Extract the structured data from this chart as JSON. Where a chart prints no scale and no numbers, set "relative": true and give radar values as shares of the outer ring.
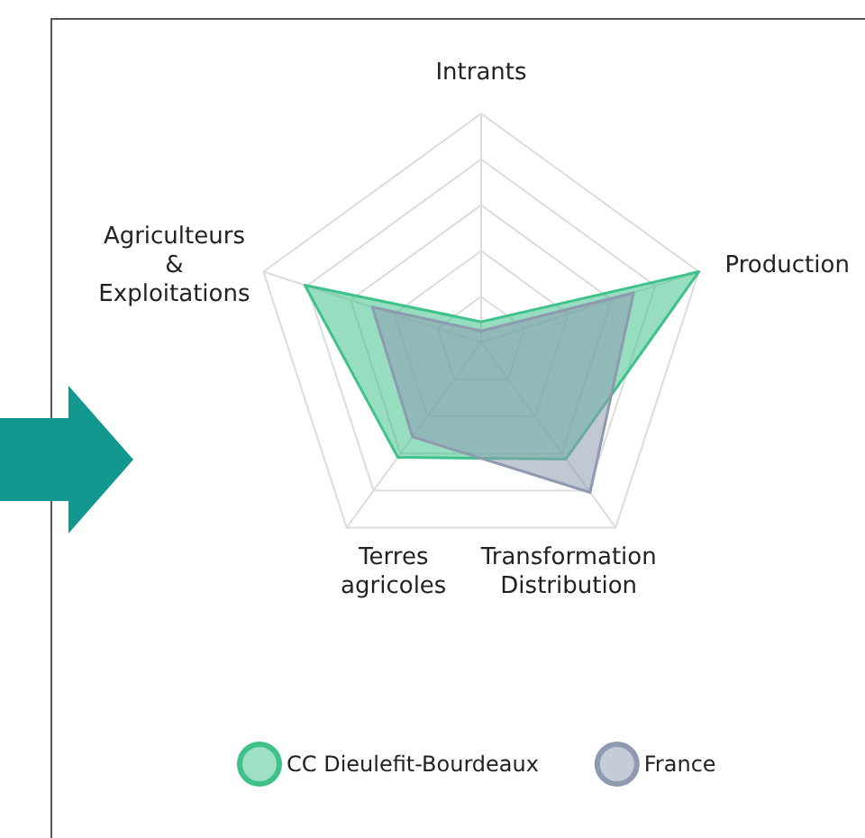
{
  "chart_data": {
    "type": "radar",
    "relative": true,
    "categories": [
      "Intrants",
      "Production",
      "Transformation\nDistribution",
      "Terres\nagricoles",
      "Agriculteurs\n&\nExploitations"
    ],
    "series": [
      {
        "name": "CC Dieulefit-Bourdeaux",
        "color": "#3fc28a",
        "values": [
          0.09,
          1.0,
          0.63,
          0.62,
          0.81
        ]
      },
      {
        "name": "France",
        "color": "#8e9ab0",
        "values": [
          0.05,
          0.7,
          0.81,
          0.51,
          0.5
        ]
      }
    ],
    "grid": true,
    "legend": "bottom"
  }
}
